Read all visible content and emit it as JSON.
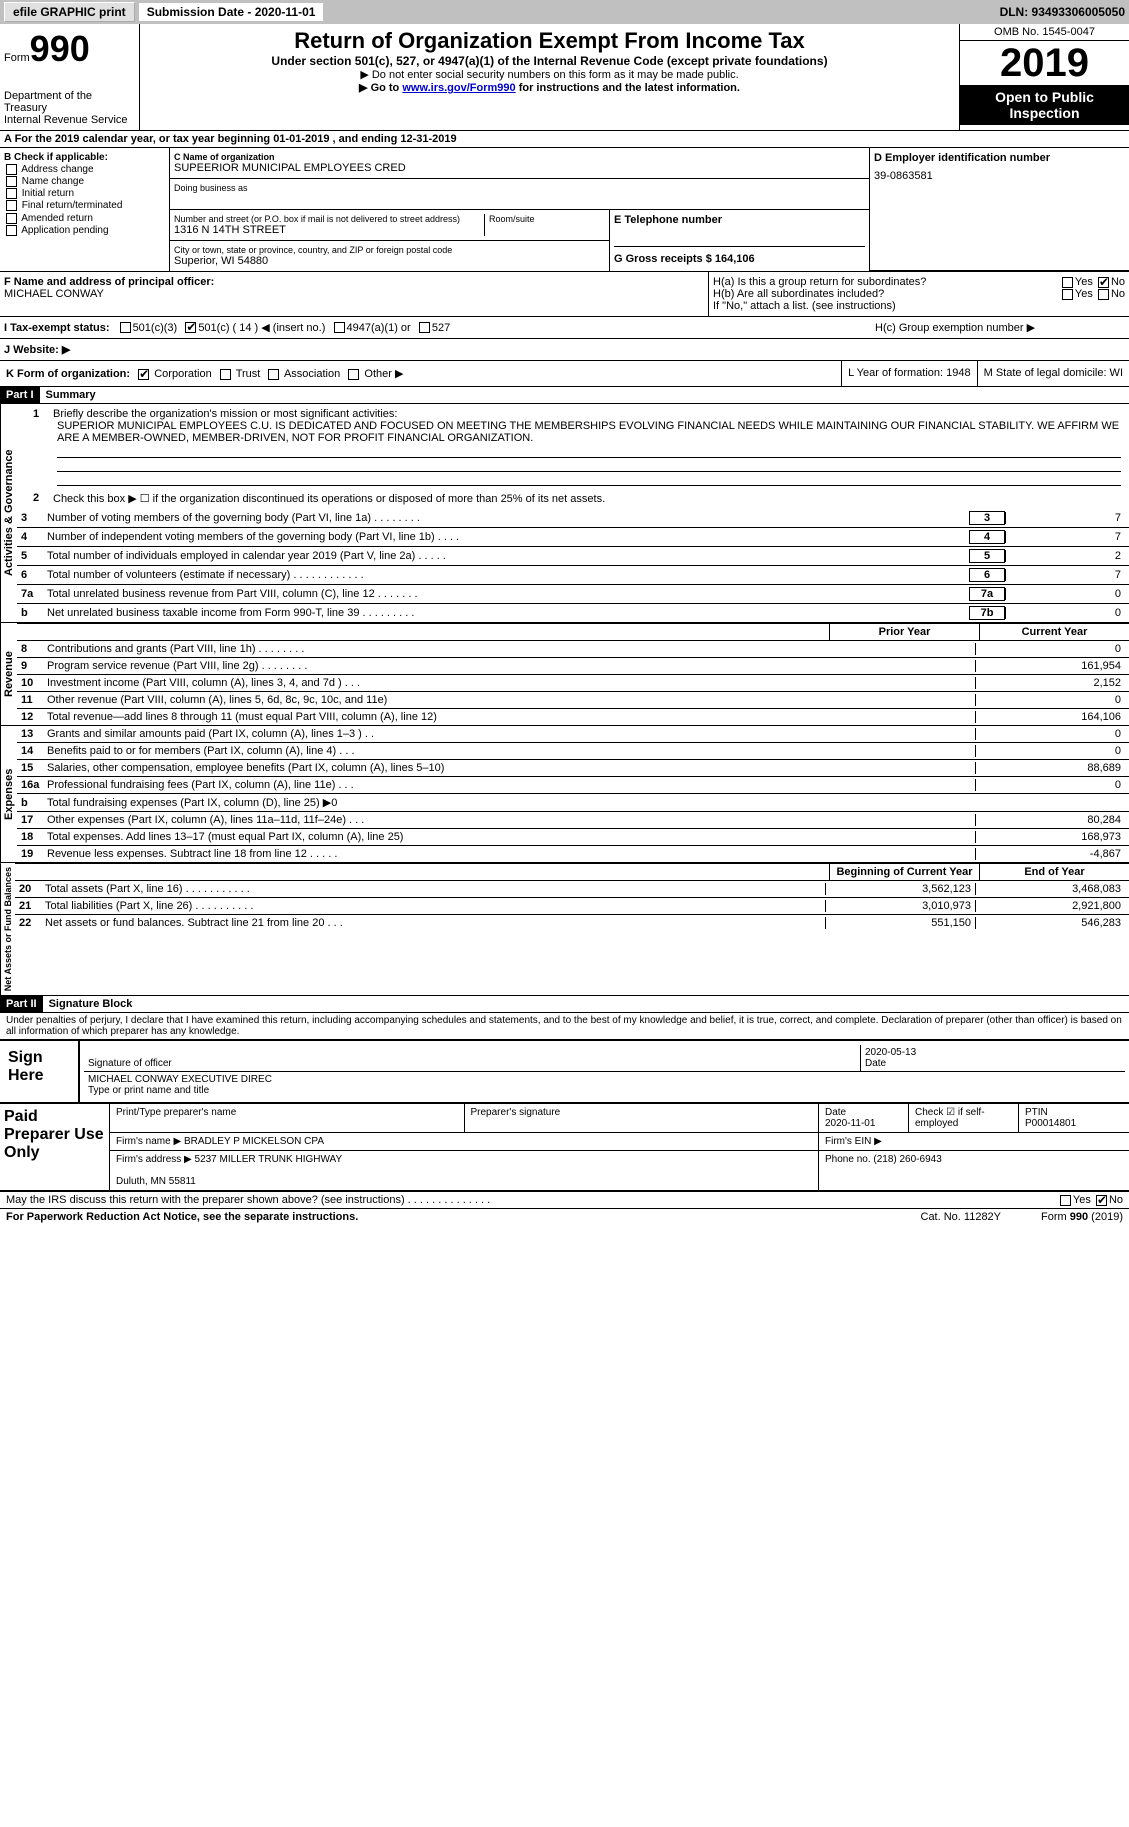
{
  "topbar": {
    "efile": "efile GRAPHIC print",
    "subdate_lbl": "Submission Date - 2020-11-01",
    "dln": "DLN: 93493306005050"
  },
  "header": {
    "form_word": "Form",
    "form_num": "990",
    "dept": "Department of the Treasury\nInternal Revenue Service",
    "title": "Return of Organization Exempt From Income Tax",
    "sub1": "Under section 501(c), 527, or 4947(a)(1) of the Internal Revenue Code (except private foundations)",
    "sub2": "▶ Do not enter social security numbers on this form as it may be made public.",
    "sub3a": "▶ Go to ",
    "sub3link": "www.irs.gov/Form990",
    "sub3b": " for instructions and the latest information.",
    "omb": "OMB No. 1545-0047",
    "year": "2019",
    "otp": "Open to Public Inspection"
  },
  "a": {
    "label": "A For the 2019 calendar year, or tax year beginning 01-01-2019   , and ending 12-31-2019"
  },
  "b": {
    "label": "B Check if applicable:",
    "opts": [
      "Address change",
      "Name change",
      "Initial return",
      "Final return/terminated",
      "Amended return",
      "Application pending"
    ]
  },
  "c": {
    "name_lbl": "C Name of organization",
    "name": "SUPEERIOR MUNICIPAL EMPLOYEES CRED",
    "dba_lbl": "Doing business as",
    "street_lbl": "Number and street (or P.O. box if mail is not delivered to street address)",
    "street": "1316 N 14TH STREET",
    "room_lbl": "Room/suite",
    "city_lbl": "City or town, state or province, country, and ZIP or foreign postal code",
    "city": "Superior, WI  54880"
  },
  "d": {
    "lbl": "D Employer identification number",
    "val": "39-0863581"
  },
  "e": {
    "lbl": "E Telephone number"
  },
  "g": {
    "lbl": "G Gross receipts $ 164,106"
  },
  "f": {
    "lbl": "F  Name and address of principal officer:",
    "val": "MICHAEL CONWAY"
  },
  "h": {
    "a": "H(a)  Is this a group return for subordinates?",
    "b": "H(b)  Are all subordinates included?",
    "b2": "If \"No,\" attach a list. (see instructions)",
    "c": "H(c)  Group exemption number ▶",
    "yes": "Yes",
    "no": "No"
  },
  "i": {
    "lbl": "I  Tax-exempt status:",
    "o1": "501(c)(3)",
    "o2": "501(c) ( 14 ) ◀ (insert no.)",
    "o3": "4947(a)(1) or",
    "o4": "527"
  },
  "j": {
    "lbl": "J  Website: ▶"
  },
  "k": {
    "lbl": "K Form of organization:",
    "o1": "Corporation",
    "o2": "Trust",
    "o3": "Association",
    "o4": "Other ▶"
  },
  "l": {
    "lbl": "L Year of formation: 1948"
  },
  "m": {
    "lbl": "M State of legal domicile: WI"
  },
  "part1": {
    "hdr": "Part I",
    "title": "Summary"
  },
  "mission": {
    "q1": "Briefly describe the organization's mission or most significant activities:",
    "text": "SUPERIOR MUNICIPAL EMPLOYEES C.U. IS DEDICATED AND FOCUSED ON MEETING THE MEMBERSHIPS EVOLVING FINANCIAL NEEDS WHILE MAINTAINING OUR FINANCIAL STABILITY. WE AFFIRM WE ARE A MEMBER-OWNED, MEMBER-DRIVEN, NOT FOR PROFIT FINANCIAL ORGANIZATION.",
    "q2": "Check this box ▶ ☐  if the organization discontinued its operations or disposed of more than 25% of its net assets."
  },
  "gov_lines": [
    {
      "n": "3",
      "d": "Number of voting members of the governing body (Part VI, line 1a)  .  .  .  .  .  .  .  .",
      "b": "3",
      "v": "7"
    },
    {
      "n": "4",
      "d": "Number of independent voting members of the governing body (Part VI, line 1b)  .  .  .  .",
      "b": "4",
      "v": "7"
    },
    {
      "n": "5",
      "d": "Total number of individuals employed in calendar year 2019 (Part V, line 2a)  .  .  .  .  .",
      "b": "5",
      "v": "2"
    },
    {
      "n": "6",
      "d": "Total number of volunteers (estimate if necessary)  .  .  .  .  .  .  .  .  .  .  .  .",
      "b": "6",
      "v": "7"
    },
    {
      "n": "7a",
      "d": "Total unrelated business revenue from Part VIII, column (C), line 12  .  .  .  .  .  .  .",
      "b": "7a",
      "v": "0"
    },
    {
      "n": "b",
      "d": "Net unrelated business taxable income from Form 990-T, line 39  .  .  .  .  .  .  .  .  .",
      "b": "7b",
      "v": "0"
    }
  ],
  "rev_hdr": {
    "prior": "Prior Year",
    "current": "Current Year"
  },
  "rev_lines": [
    {
      "n": "8",
      "d": "Contributions and grants (Part VIII, line 1h)  .  .  .  .  .  .  .  .",
      "p": "",
      "c": "0"
    },
    {
      "n": "9",
      "d": "Program service revenue (Part VIII, line 2g)  .  .  .  .  .  .  .  .",
      "p": "",
      "c": "161,954"
    },
    {
      "n": "10",
      "d": "Investment income (Part VIII, column (A), lines 3, 4, and 7d )  .  .  .",
      "p": "",
      "c": "2,152"
    },
    {
      "n": "11",
      "d": "Other revenue (Part VIII, column (A), lines 5, 6d, 8c, 9c, 10c, and 11e)",
      "p": "",
      "c": "0"
    },
    {
      "n": "12",
      "d": "Total revenue—add lines 8 through 11 (must equal Part VIII, column (A), line 12)",
      "p": "",
      "c": "164,106"
    }
  ],
  "exp_lines": [
    {
      "n": "13",
      "d": "Grants and similar amounts paid (Part IX, column (A), lines 1–3 )  .  .",
      "p": "",
      "c": "0"
    },
    {
      "n": "14",
      "d": "Benefits paid to or for members (Part IX, column (A), line 4)  .  .  .",
      "p": "",
      "c": "0"
    },
    {
      "n": "15",
      "d": "Salaries, other compensation, employee benefits (Part IX, column (A), lines 5–10)",
      "p": "",
      "c": "88,689"
    },
    {
      "n": "16a",
      "d": "Professional fundraising fees (Part IX, column (A), line 11e)  .  .  .",
      "p": "",
      "c": "0"
    },
    {
      "n": "b",
      "d": "Total fundraising expenses (Part IX, column (D), line 25) ▶0",
      "p": "GREY",
      "c": "GREY"
    },
    {
      "n": "17",
      "d": "Other expenses (Part IX, column (A), lines 11a–11d, 11f–24e)  .  .  .",
      "p": "",
      "c": "80,284"
    },
    {
      "n": "18",
      "d": "Total expenses. Add lines 13–17 (must equal Part IX, column (A), line 25)",
      "p": "",
      "c": "168,973"
    },
    {
      "n": "19",
      "d": "Revenue less expenses. Subtract line 18 from line 12  .  .  .  .  .",
      "p": "",
      "c": "-4,867"
    }
  ],
  "na_hdr": {
    "begin": "Beginning of Current Year",
    "end": "End of Year"
  },
  "na_lines": [
    {
      "n": "20",
      "d": "Total assets (Part X, line 16)  .  .  .  .  .  .  .  .  .  .  .",
      "p": "3,562,123",
      "c": "3,468,083"
    },
    {
      "n": "21",
      "d": "Total liabilities (Part X, line 26)  .  .  .  .  .  .  .  .  .  .",
      "p": "3,010,973",
      "c": "2,921,800"
    },
    {
      "n": "22",
      "d": "Net assets or fund balances. Subtract line 21 from line 20  .  .  .",
      "p": "551,150",
      "c": "546,283"
    }
  ],
  "part2": {
    "hdr": "Part II",
    "title": "Signature Block"
  },
  "sig": {
    "perjury": "Under penalties of perjury, I declare that I have examined this return, including accompanying schedules and statements, and to the best of my knowledge and belief, it is true, correct, and complete. Declaration of preparer (other than officer) is based on all information of which preparer has any knowledge.",
    "sign_here": "Sign Here",
    "sig_officer": "Signature of officer",
    "date": "Date",
    "sig_date": "2020-05-13",
    "name": "MICHAEL CONWAY EXECUTIVE DIREC",
    "name_lbl": "Type or print name and title"
  },
  "paid": {
    "hdr": "Paid Preparer Use Only",
    "r1": {
      "c1": "Print/Type preparer's name",
      "c2": "Preparer's signature",
      "c3": "Date\n2020-11-01",
      "c4": "Check ☑ if self-employed",
      "c5": "PTIN\nP00014801"
    },
    "r2": {
      "c1": "Firm's name    ▶ BRADLEY P MICKELSON CPA",
      "c2": "Firm's EIN ▶"
    },
    "r3": {
      "c1": "Firm's address ▶ 5237 MILLER TRUNK HIGHWAY\n\nDuluth, MN  55811",
      "c2": "Phone no. (218) 260-6943"
    }
  },
  "discuss": "May the IRS discuss this return with the preparer shown above? (see instructions)  .  .  .  .  .  .  .  .  .  .  .  .  .  .",
  "footer": {
    "pra": "For Paperwork Reduction Act Notice, see the separate instructions.",
    "cat": "Cat. No. 11282Y",
    "form": "Form 990 (2019)"
  },
  "sidelabels": {
    "gov": "Activities & Governance",
    "rev": "Revenue",
    "exp": "Expenses",
    "na": "Net Assets or Fund Balances"
  }
}
